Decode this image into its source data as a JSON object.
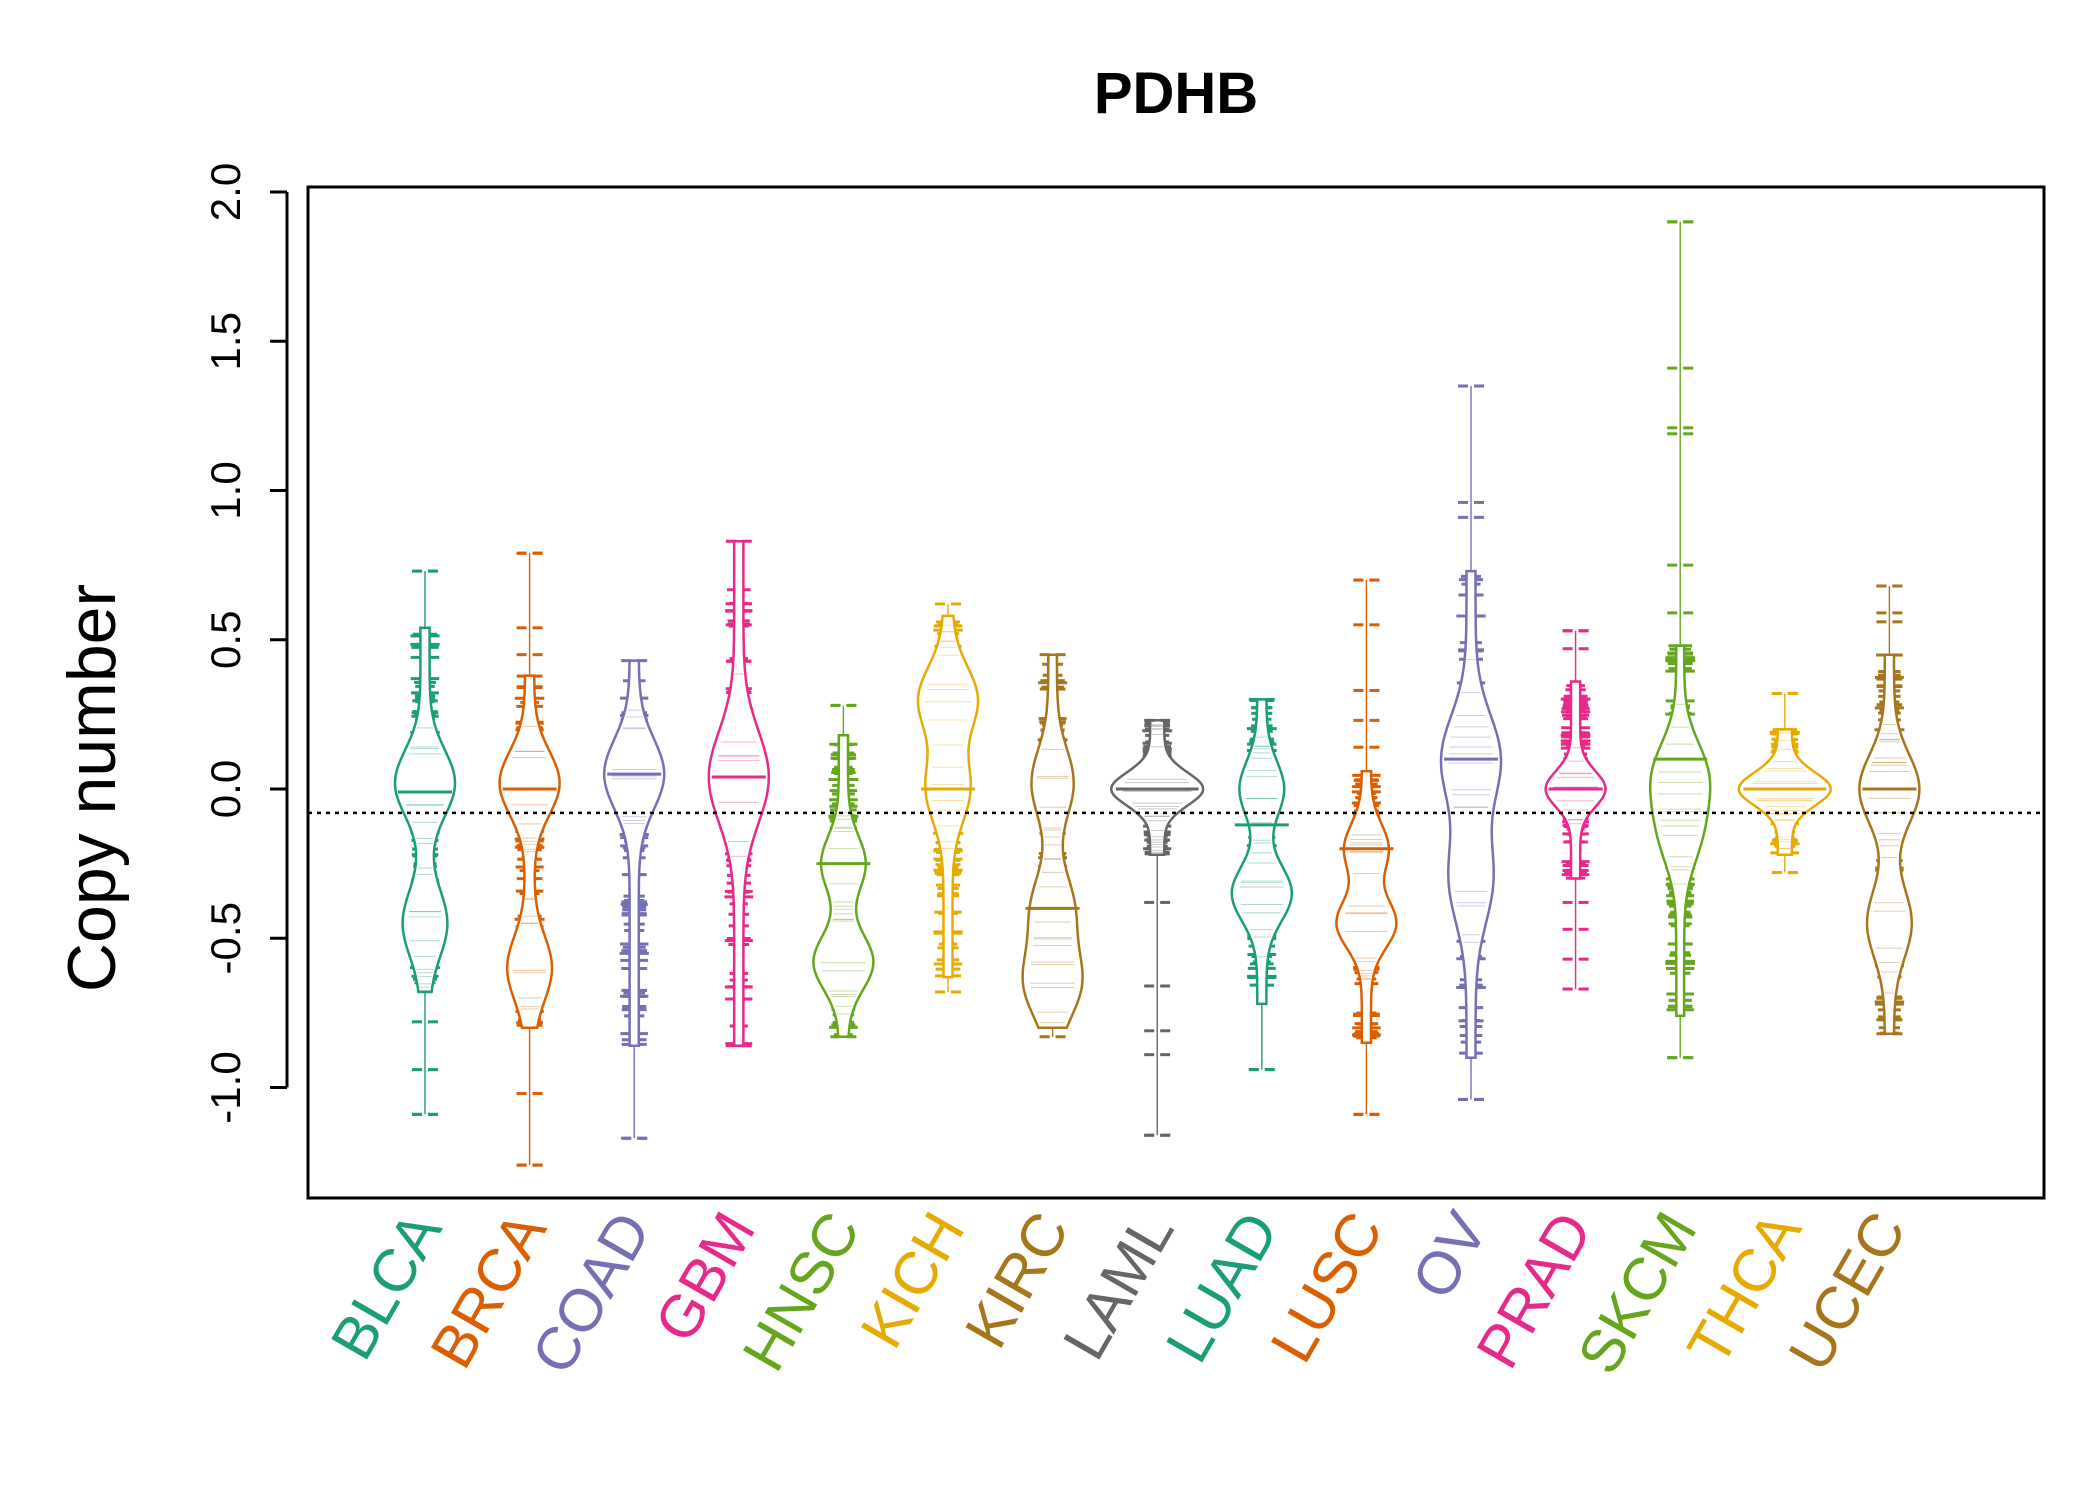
{
  "chart_data": {
    "type": "beanplot",
    "title": "PDHB",
    "xlabel": "",
    "ylabel": "Copy number",
    "ylim": [
      -1.37,
      2.0
    ],
    "yticks": [
      -1.0,
      -0.5,
      0.0,
      0.5,
      1.0,
      1.5,
      2.0
    ],
    "ytick_labels": [
      "-1.0",
      "-0.5",
      "0.0",
      "0.5",
      "1.0",
      "1.5",
      "2.0"
    ],
    "reference_line": {
      "value": -0.08,
      "style": "dotted"
    },
    "categories": [
      "BLCA",
      "BRCA",
      "COAD",
      "GBM",
      "HNSC",
      "KICH",
      "KIRC",
      "LAML",
      "LUAD",
      "LUSC",
      "OV",
      "PRAD",
      "SKCM",
      "THCA",
      "UCEC"
    ],
    "colors": [
      "#1B9E77",
      "#D95F02",
      "#7570B3",
      "#E7298A",
      "#66A61E",
      "#E6AB02",
      "#A6761D",
      "#666666",
      "#1B9E77",
      "#D95F02",
      "#7570B3",
      "#E7298A",
      "#66A61E",
      "#E6AB02",
      "#A6761D"
    ],
    "series": [
      {
        "name": "BLCA",
        "min": -1.09,
        "max": 0.73,
        "dense_low": -0.68,
        "dense_high": 0.54,
        "peaks": [
          0.02,
          -0.45
        ],
        "mean": -0.01,
        "outliers": [
          0.73,
          -0.78,
          -0.94,
          -1.09
        ]
      },
      {
        "name": "BRCA",
        "min": -1.26,
        "max": 0.79,
        "dense_low": -0.8,
        "dense_high": 0.38,
        "peaks": [
          0.02,
          -0.6
        ],
        "mean": 0.0,
        "outliers": [
          0.79,
          0.54,
          0.45,
          -1.02,
          -1.26
        ]
      },
      {
        "name": "COAD",
        "min": -1.17,
        "max": 0.43,
        "dense_low": -0.86,
        "dense_high": 0.43,
        "peaks": [
          0.05
        ],
        "mean": 0.05,
        "outliers": [
          -1.17
        ]
      },
      {
        "name": "GBM",
        "min": -0.86,
        "max": 0.83,
        "dense_low": -0.86,
        "dense_high": 0.83,
        "peaks": [
          0.04
        ],
        "mean": 0.04,
        "outliers": []
      },
      {
        "name": "HNSC",
        "min": -0.83,
        "max": 0.28,
        "dense_low": -0.83,
        "dense_high": 0.18,
        "peaks": [
          -0.58,
          -0.25
        ],
        "mean": -0.25,
        "outliers": [
          0.28
        ]
      },
      {
        "name": "KICH",
        "min": -0.68,
        "max": 0.62,
        "dense_low": -0.63,
        "dense_high": 0.58,
        "peaks": [
          0.3,
          0.0
        ],
        "mean": 0.0,
        "outliers": []
      },
      {
        "name": "KIRC",
        "min": -0.83,
        "max": 0.45,
        "dense_low": -0.8,
        "dense_high": 0.45,
        "peaks": [
          -0.65,
          -0.4,
          0.02
        ],
        "mean": -0.4,
        "outliers": []
      },
      {
        "name": "LAML",
        "min": -1.16,
        "max": 0.23,
        "dense_low": -0.22,
        "dense_high": 0.23,
        "peaks": [
          0.0
        ],
        "mean": 0.0,
        "outliers": [
          -0.38,
          -0.66,
          -0.81,
          -0.89,
          -1.16
        ]
      },
      {
        "name": "LUAD",
        "min": -0.94,
        "max": 0.3,
        "dense_low": -0.72,
        "dense_high": 0.3,
        "peaks": [
          -0.35,
          0.0
        ],
        "mean": -0.12,
        "outliers": [
          -0.94
        ]
      },
      {
        "name": "LUSC",
        "min": -1.09,
        "max": 0.7,
        "dense_low": -0.85,
        "dense_high": 0.06,
        "peaks": [
          -0.45,
          -0.2
        ],
        "mean": -0.2,
        "outliers": [
          0.7,
          0.55,
          0.33,
          0.23,
          0.14,
          -1.09
        ]
      },
      {
        "name": "OV",
        "min": -1.04,
        "max": 1.35,
        "dense_low": -0.9,
        "dense_high": 0.73,
        "peaks": [
          0.1,
          -0.3
        ],
        "mean": 0.1,
        "outliers": [
          1.35,
          0.96,
          0.91,
          -1.04
        ]
      },
      {
        "name": "PRAD",
        "min": -0.67,
        "max": 0.53,
        "dense_low": -0.3,
        "dense_high": 0.36,
        "peaks": [
          0.0
        ],
        "mean": 0.0,
        "outliers": [
          0.53,
          0.47,
          -0.38,
          -0.47,
          -0.57,
          -0.67
        ]
      },
      {
        "name": "SKCM",
        "min": -0.9,
        "max": 1.9,
        "dense_low": -0.76,
        "dense_high": 0.48,
        "peaks": [
          0.05,
          -0.15
        ],
        "mean": 0.1,
        "outliers": [
          1.9,
          1.41,
          1.21,
          1.19,
          0.75,
          0.59,
          -0.9
        ]
      },
      {
        "name": "THCA",
        "min": -0.28,
        "max": 0.32,
        "dense_low": -0.22,
        "dense_high": 0.2,
        "peaks": [
          0.0
        ],
        "mean": 0.0,
        "outliers": [
          0.32,
          -0.28
        ]
      },
      {
        "name": "UCEC",
        "min": -0.82,
        "max": 0.68,
        "dense_low": -0.82,
        "dense_high": 0.45,
        "peaks": [
          0.0,
          -0.45
        ],
        "mean": 0.0,
        "outliers": [
          0.68,
          0.59,
          0.56
        ]
      }
    ]
  }
}
